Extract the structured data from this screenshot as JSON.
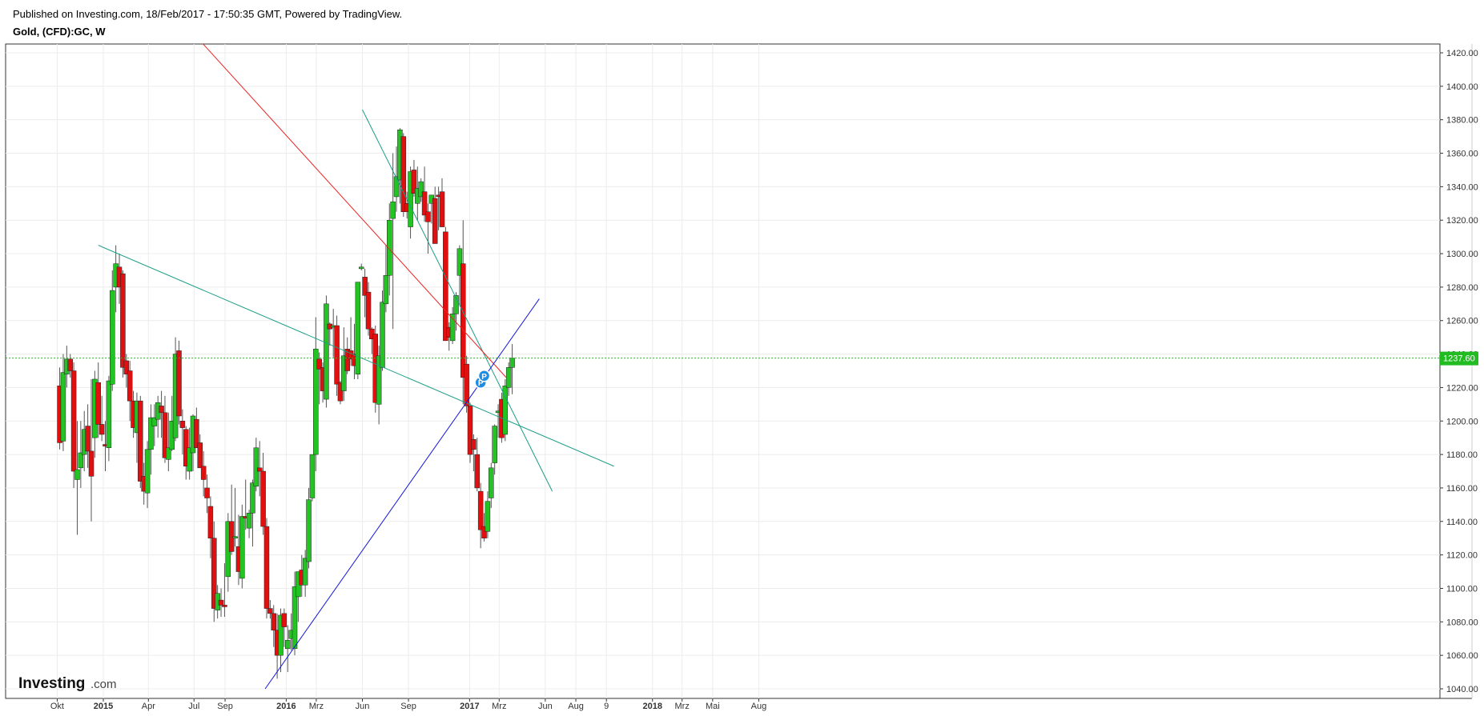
{
  "header": {
    "published": "Published on Investing.com, 18/Feb/2017 - 17:50:35 GMT, Powered by TradingView.",
    "symbol": "Gold, (CFD):GC, W"
  },
  "logo": {
    "brand": "Investing",
    "suffix": ".com"
  },
  "price_badge": "1237.60",
  "colors": {
    "up": "#22c322",
    "down": "#e01010",
    "wick": "#555555",
    "trend_teal": "#1a9e86",
    "trend_red": "#ee2222",
    "trend_blue": "#1515dd",
    "price_line": "#22bb22",
    "grid": "#ececec"
  },
  "icons": [
    "annotation-p-icon",
    "annotation-p-icon"
  ],
  "chart_data": {
    "type": "candlestick",
    "title": "Gold, (CFD):GC, W",
    "interval": "weekly",
    "y_axis": {
      "position": "right",
      "ylim": [
        1033,
        1425
      ],
      "ticks": [
        1040,
        1060,
        1080,
        1100,
        1120,
        1140,
        1160,
        1180,
        1200,
        1220,
        1240,
        1260,
        1280,
        1300,
        1320,
        1340,
        1360,
        1380,
        1400,
        1420
      ],
      "tick_labels": [
        "1040.00",
        "1060.00",
        "1080.00",
        "1100.00",
        "1120.00",
        "1140.00",
        "1160.00",
        "1180.00",
        "1200.00",
        "1220.00",
        "1240.00",
        "1260.00",
        "1280.00",
        "1300.00",
        "1320.00",
        "1340.00",
        "1360.00",
        "1380.00",
        "1400.00",
        "1420.00"
      ]
    },
    "x_axis": {
      "first_bar_date": "2014-10-06",
      "last_date_shown": "2018-08-15",
      "ticks": [
        {
          "date": "2014-10-01",
          "label": "Okt",
          "bold": false
        },
        {
          "date": "2015-01-01",
          "label": "2015",
          "bold": true
        },
        {
          "date": "2015-04-01",
          "label": "Apr",
          "bold": false
        },
        {
          "date": "2015-07-01",
          "label": "Jul",
          "bold": false
        },
        {
          "date": "2015-09-01",
          "label": "Sep",
          "bold": false
        },
        {
          "date": "2016-01-01",
          "label": "2016",
          "bold": true
        },
        {
          "date": "2016-03-01",
          "label": "Mrz",
          "bold": false
        },
        {
          "date": "2016-06-01",
          "label": "Jun",
          "bold": false
        },
        {
          "date": "2016-09-01",
          "label": "Sep",
          "bold": false
        },
        {
          "date": "2017-01-01",
          "label": "2017",
          "bold": true
        },
        {
          "date": "2017-03-01",
          "label": "Mrz",
          "bold": false
        },
        {
          "date": "2017-06-01",
          "label": "Jun",
          "bold": false
        },
        {
          "date": "2017-08-01",
          "label": "Aug",
          "bold": false
        },
        {
          "date": "2017-10-01",
          "label": "9",
          "bold": false
        },
        {
          "date": "2018-01-01",
          "label": "2018",
          "bold": true
        },
        {
          "date": "2018-03-01",
          "label": "Mrz",
          "bold": false
        },
        {
          "date": "2018-05-01",
          "label": "Mai",
          "bold": false
        },
        {
          "date": "2018-08-01",
          "label": "Aug",
          "bold": false
        }
      ]
    },
    "series": [
      {
        "name": "",
        "columns": [
          "open",
          "high",
          "low",
          "close"
        ],
        "values": [
          [
            1221,
            1232,
            1183,
            1187
          ],
          [
            1188,
            1240,
            1182,
            1229
          ],
          [
            1228,
            1245,
            1220,
            1237
          ],
          [
            1237,
            1240,
            1226,
            1230
          ],
          [
            1230,
            1235,
            1160,
            1170
          ],
          [
            1165,
            1200,
            1132,
            1171
          ],
          [
            1172,
            1200,
            1160,
            1181
          ],
          [
            1180,
            1206,
            1170,
            1195
          ],
          [
            1197,
            1210,
            1172,
            1182
          ],
          [
            1182,
            1225,
            1140,
            1167
          ],
          [
            1190,
            1230,
            1178,
            1225
          ],
          [
            1223,
            1235,
            1190,
            1198
          ],
          [
            1198,
            1215,
            1188,
            1192
          ],
          [
            1186,
            1200,
            1170,
            1185
          ],
          [
            1184,
            1227,
            1176,
            1224
          ],
          [
            1222,
            1290,
            1218,
            1278
          ],
          [
            1280,
            1305,
            1265,
            1294
          ],
          [
            1292,
            1300,
            1270,
            1280
          ],
          [
            1288,
            1290,
            1226,
            1232
          ],
          [
            1236,
            1240,
            1220,
            1228
          ],
          [
            1230,
            1236,
            1200,
            1212
          ],
          [
            1212,
            1218,
            1190,
            1196
          ],
          [
            1193,
            1217,
            1175,
            1212
          ],
          [
            1212,
            1215,
            1160,
            1164
          ],
          [
            1167,
            1175,
            1150,
            1158
          ],
          [
            1157,
            1188,
            1148,
            1183
          ],
          [
            1183,
            1210,
            1168,
            1202
          ],
          [
            1197,
            1210,
            1185,
            1202
          ],
          [
            1201,
            1215,
            1190,
            1211
          ],
          [
            1209,
            1218,
            1190,
            1205
          ],
          [
            1205,
            1215,
            1175,
            1178
          ],
          [
            1177,
            1205,
            1170,
            1184
          ],
          [
            1183,
            1215,
            1182,
            1200
          ],
          [
            1190,
            1250,
            1188,
            1240
          ],
          [
            1242,
            1248,
            1198,
            1203
          ],
          [
            1200,
            1207,
            1180,
            1196
          ],
          [
            1195,
            1197,
            1165,
            1173
          ],
          [
            1170,
            1196,
            1165,
            1184
          ],
          [
            1181,
            1204,
            1170,
            1203
          ],
          [
            1201,
            1208,
            1186,
            1184
          ],
          [
            1187,
            1192,
            1178,
            1172
          ],
          [
            1173,
            1182,
            1155,
            1165
          ],
          [
            1160,
            1168,
            1145,
            1154
          ],
          [
            1149,
            1155,
            1118,
            1130
          ],
          [
            1130,
            1140,
            1080,
            1088
          ],
          [
            1087,
            1102,
            1082,
            1097
          ],
          [
            1093,
            1100,
            1083,
            1090
          ],
          [
            1090,
            1115,
            1083,
            1089
          ],
          [
            1107,
            1145,
            1098,
            1140
          ],
          [
            1140,
            1162,
            1120,
            1122
          ],
          [
            1130,
            1160,
            1125,
            1131
          ],
          [
            1125,
            1144,
            1102,
            1110
          ],
          [
            1106,
            1150,
            1100,
            1143
          ],
          [
            1143,
            1165,
            1135,
            1142
          ],
          [
            1136,
            1147,
            1130,
            1145
          ],
          [
            1145,
            1165,
            1125,
            1163
          ],
          [
            1161,
            1190,
            1158,
            1184
          ],
          [
            1172,
            1188,
            1155,
            1170
          ],
          [
            1170,
            1181,
            1132,
            1137
          ],
          [
            1137,
            1142,
            1082,
            1088
          ],
          [
            1088,
            1093,
            1082,
            1085
          ],
          [
            1085,
            1090,
            1065,
            1075
          ],
          [
            1075,
            1085,
            1046,
            1060
          ],
          [
            1060,
            1088,
            1050,
            1084
          ],
          [
            1085,
            1088,
            1065,
            1077
          ],
          [
            1064,
            1078,
            1050,
            1069
          ],
          [
            1070,
            1085,
            1063,
            1075
          ],
          [
            1064,
            1110,
            1060,
            1101
          ],
          [
            1095,
            1108,
            1080,
            1110
          ],
          [
            1111,
            1120,
            1095,
            1102
          ],
          [
            1102,
            1123,
            1095,
            1118
          ],
          [
            1116,
            1160,
            1112,
            1153
          ],
          [
            1154,
            1178,
            1152,
            1180
          ],
          [
            1180,
            1262,
            1170,
            1243
          ],
          [
            1237,
            1241,
            1210,
            1231
          ],
          [
            1232,
            1235,
            1211,
            1218
          ],
          [
            1213,
            1275,
            1208,
            1270
          ],
          [
            1258,
            1259,
            1245,
            1255
          ],
          [
            1256,
            1267,
            1238,
            1257
          ],
          [
            1257,
            1263,
            1215,
            1222
          ],
          [
            1223,
            1224,
            1210,
            1212
          ],
          [
            1218,
            1256,
            1212,
            1239
          ],
          [
            1243,
            1250,
            1228,
            1230
          ],
          [
            1242,
            1262,
            1233,
            1237
          ],
          [
            1240,
            1258,
            1225,
            1233
          ],
          [
            1228,
            1282,
            1225,
            1283
          ],
          [
            1291,
            1294,
            1290,
            1292
          ],
          [
            1286,
            1291,
            1262,
            1275
          ],
          [
            1277,
            1283,
            1251,
            1255
          ],
          [
            1255,
            1256,
            1240,
            1249
          ],
          [
            1252,
            1257,
            1205,
            1211
          ],
          [
            1210,
            1245,
            1198,
            1239
          ],
          [
            1232,
            1278,
            1230,
            1271
          ],
          [
            1270,
            1305,
            1265,
            1287
          ],
          [
            1287,
            1330,
            1275,
            1320
          ],
          [
            1321,
            1360,
            1255,
            1331
          ],
          [
            1334,
            1364,
            1325,
            1346
          ],
          [
            1344,
            1375,
            1330,
            1374
          ],
          [
            1370,
            1372,
            1322,
            1325
          ],
          [
            1330,
            1337,
            1321,
            1325
          ],
          [
            1316,
            1352,
            1309,
            1349
          ],
          [
            1350,
            1356,
            1334,
            1336
          ],
          [
            1330,
            1352,
            1320,
            1339
          ],
          [
            1334,
            1345,
            1331,
            1343
          ],
          [
            1337,
            1352,
            1319,
            1323
          ],
          [
            1325,
            1330,
            1300,
            1319
          ],
          [
            1330,
            1335,
            1318,
            1335
          ],
          [
            1333,
            1340,
            1311,
            1306
          ],
          [
            1335,
            1340,
            1314,
            1334
          ],
          [
            1337,
            1345,
            1318,
            1316
          ],
          [
            1313,
            1316,
            1249,
            1248
          ],
          [
            1256,
            1259,
            1242,
            1250
          ],
          [
            1248,
            1268,
            1246,
            1264
          ],
          [
            1264,
            1277,
            1254,
            1275
          ],
          [
            1287,
            1305,
            1269,
            1303
          ],
          [
            1294,
            1320,
            1210,
            1226
          ],
          [
            1234,
            1239,
            1205,
            1209
          ],
          [
            1209,
            1211,
            1175,
            1180
          ],
          [
            1189,
            1192,
            1170,
            1183
          ],
          [
            1180,
            1190,
            1158,
            1160
          ],
          [
            1158,
            1163,
            1124,
            1135
          ],
          [
            1137,
            1145,
            1128,
            1130
          ],
          [
            1134,
            1158,
            1130,
            1152
          ],
          [
            1154,
            1175,
            1148,
            1172
          ],
          [
            1175,
            1198,
            1168,
            1197
          ],
          [
            1205,
            1210,
            1190,
            1206
          ],
          [
            1213,
            1217,
            1187,
            1190
          ],
          [
            1192,
            1225,
            1188,
            1221
          ],
          [
            1220,
            1235,
            1215,
            1232
          ],
          [
            1232,
            1246,
            1216,
            1237.6
          ]
        ]
      }
    ],
    "last_price": 1237.6,
    "trendlines": [
      {
        "name": "",
        "color": "trend_teal",
        "points": [
          [
            "2014-12-22",
            1305
          ],
          [
            "2017-10-16",
            1173
          ]
        ]
      },
      {
        "name": "",
        "color": "trend_teal",
        "points": [
          [
            "2016-06-01",
            1386
          ],
          [
            "2017-06-15",
            1158
          ]
        ]
      },
      {
        "name": "",
        "color": "trend_red",
        "points": [
          [
            "2015-07-20",
            1425
          ],
          [
            "2017-03-15",
            1226
          ]
        ]
      },
      {
        "name": "",
        "color": "trend_blue",
        "points": [
          [
            "2015-11-20",
            1040
          ],
          [
            "2017-05-20",
            1273
          ]
        ]
      }
    ],
    "annotations": [
      {
        "label": "P",
        "date": "2017-01-23",
        "price": 1223
      },
      {
        "label": "P",
        "date": "2017-01-30",
        "price": 1227
      }
    ],
    "grid": true,
    "legend": "none"
  }
}
